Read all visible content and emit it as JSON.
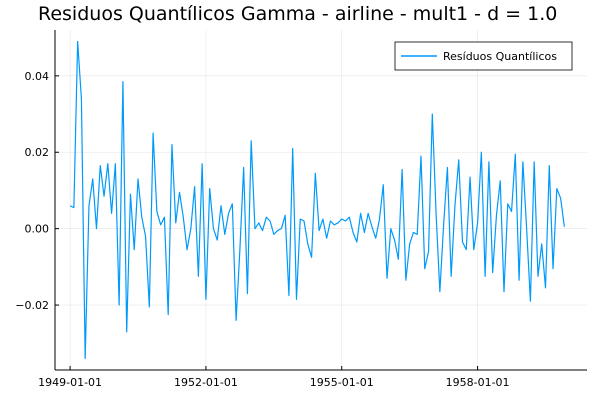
{
  "chart_data": {
    "type": "line",
    "title": "Residuos Quantílicos Gamma - airline - mult1 - d = 1.0",
    "xlabel": "",
    "ylabel": "",
    "x_start": "1949-01-01",
    "x_frequency": "monthly",
    "xlim": [
      "1948-09-01",
      "1960-06-01"
    ],
    "ylim": [
      -0.037,
      0.052
    ],
    "x_ticks": [
      "1949-01-01",
      "1952-01-01",
      "1955-01-01",
      "1958-01-01"
    ],
    "y_ticks": [
      -0.02,
      0.0,
      0.02,
      0.04
    ],
    "y_tick_labels": [
      "−0.02",
      "0.00",
      "0.02",
      "0.04"
    ],
    "grid": true,
    "legend_position": "top-right",
    "series": [
      {
        "name": "Resíduos Quantílicos",
        "color": "#009AFA",
        "values": [
          0.006,
          0.0055,
          0.049,
          0.034,
          -0.034,
          0.006,
          0.013,
          0.0,
          0.0165,
          0.0085,
          0.017,
          0.004,
          0.017,
          -0.02,
          0.0385,
          -0.027,
          0.009,
          -0.0055,
          0.013,
          0.003,
          -0.002,
          -0.0205,
          0.025,
          0.0045,
          0.001,
          0.003,
          -0.0225,
          0.022,
          0.0015,
          0.0095,
          0.003,
          -0.0055,
          0.0,
          0.011,
          -0.0125,
          0.017,
          -0.0185,
          0.0105,
          0.0,
          -0.003,
          0.006,
          -0.0015,
          0.004,
          0.0065,
          -0.024,
          -0.0055,
          0.016,
          -0.017,
          0.023,
          0.0,
          0.0015,
          -0.0005,
          0.003,
          0.002,
          -0.0015,
          -0.0005,
          0.0,
          0.0035,
          -0.0175,
          0.021,
          -0.0185,
          0.0025,
          0.002,
          -0.004,
          -0.0075,
          0.0145,
          -0.0005,
          0.0025,
          -0.0025,
          0.002,
          0.001,
          0.0015,
          0.0025,
          0.002,
          0.003,
          -0.001,
          -0.0035,
          0.004,
          -0.001,
          0.004,
          0.0005,
          -0.0025,
          0.0025,
          0.0115,
          -0.013,
          0.0,
          -0.003,
          -0.008,
          0.0155,
          -0.0135,
          -0.004,
          -0.001,
          -0.0015,
          0.019,
          -0.0105,
          -0.006,
          0.03,
          0.004,
          -0.0165,
          0.001,
          0.016,
          -0.0125,
          0.006,
          0.018,
          -0.0035,
          -0.0055,
          0.0135,
          -0.0055,
          0.0015,
          0.02,
          -0.0125,
          0.0175,
          -0.0115,
          0.0035,
          0.0125,
          -0.0165,
          0.0065,
          0.0045,
          0.0195,
          -0.0135,
          0.0175,
          0.0,
          -0.019,
          0.0175,
          -0.0125,
          -0.004,
          -0.0155,
          0.0165,
          -0.0105,
          0.0105,
          0.008,
          0.0005
        ]
      }
    ]
  }
}
